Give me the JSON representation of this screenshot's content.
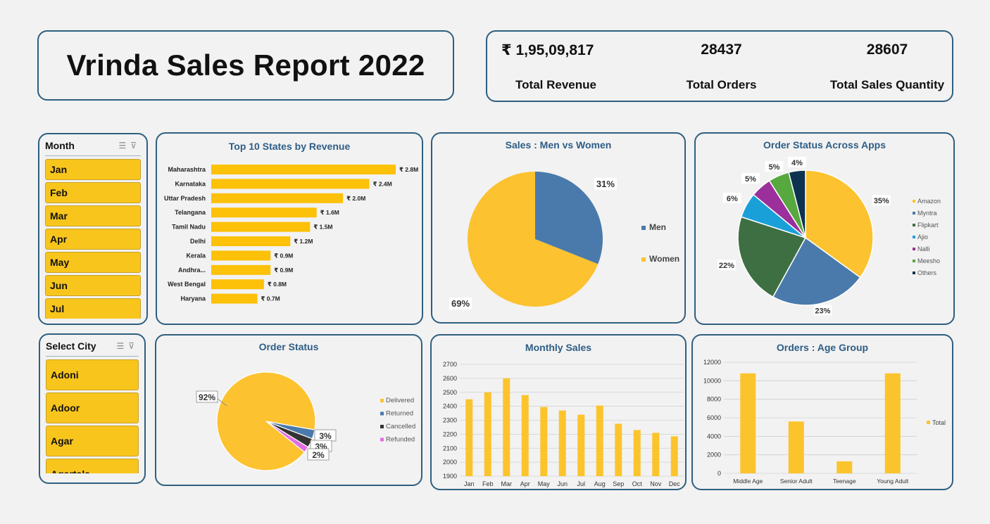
{
  "header": {
    "title": "Vrinda Sales Report 2022"
  },
  "kpis": [
    {
      "value": "₹ 1,95,09,817",
      "label": "Total Revenue"
    },
    {
      "value": "28437",
      "label": "Total Orders"
    },
    {
      "value": "28607",
      "label": "Total  Sales Quantity"
    }
  ],
  "month_slicer": {
    "title": "Month",
    "items": [
      "Jan",
      "Feb",
      "Mar",
      "Apr",
      "May",
      "Jun",
      "Jul"
    ]
  },
  "city_slicer": {
    "title": "Select City",
    "items": [
      "Adoni",
      "Adoor",
      "Agar",
      "Agartala"
    ]
  },
  "colors": {
    "yellow": "#fcc22f",
    "blue": "#4a7aab",
    "green": "#3e6f42",
    "cyan": "#1aa0d8",
    "purple": "#9b2f9b",
    "lime": "#56a83f",
    "navy": "#0d3350",
    "dark": "#333333",
    "pink": "#e26ee2",
    "accent": "#2e5d86"
  },
  "chart_data": [
    {
      "type": "bar",
      "title": "Top 10 States by Revenue",
      "categories": [
        "Maharashtra",
        "Karnataka",
        "Uttar Pradesh",
        "Telangana",
        "Tamil Nadu",
        "Delhi",
        "Kerala",
        "Andhra...",
        "West Bengal",
        "Haryana"
      ],
      "values": [
        2.8,
        2.4,
        2.0,
        1.6,
        1.5,
        1.2,
        0.9,
        0.9,
        0.8,
        0.7
      ],
      "labels": [
        "₹ 2.8M",
        "₹ 2.4M",
        "₹ 2.0M",
        "₹ 1.6M",
        "₹ 1.5M",
        "₹ 1.2M",
        "₹ 0.9M",
        "₹ 0.9M",
        "₹ 0.8M",
        "₹ 0.7M"
      ]
    },
    {
      "type": "pie",
      "title": "Sales : Men vs Women",
      "categories": [
        "Men",
        "Women"
      ],
      "values": [
        31,
        69
      ],
      "labels": [
        "31%",
        "69%"
      ]
    },
    {
      "type": "pie",
      "title": "Order Status Across Apps",
      "categories": [
        "Amazon",
        "Myntra",
        "Flipkart",
        "Ajio",
        "Nalli",
        "Meesho",
        "Others"
      ],
      "values": [
        35,
        23,
        22,
        6,
        5,
        5,
        4
      ],
      "labels": [
        "35%",
        "23%",
        "22%",
        "6%",
        "5%",
        "5%",
        "4%"
      ]
    },
    {
      "type": "pie",
      "title": "Order Status",
      "categories": [
        "Delivered",
        "Returned",
        "Cancelled",
        "Refunded"
      ],
      "values": [
        92,
        3,
        3,
        2
      ],
      "labels": [
        "92%",
        "3%",
        "3%",
        "2%"
      ]
    },
    {
      "type": "bar",
      "title": "Monthly Sales",
      "categories": [
        "Jan",
        "Feb",
        "Mar",
        "Apr",
        "May",
        "Jun",
        "Jul",
        "Aug",
        "Sep",
        "Oct",
        "Nov",
        "Dec"
      ],
      "values": [
        2450,
        2500,
        2600,
        2480,
        2395,
        2370,
        2340,
        2405,
        2275,
        2230,
        2210,
        2185
      ],
      "ylim": [
        1900,
        2700
      ],
      "yticks": [
        "2700",
        "2600",
        "2500",
        "2400",
        "2300",
        "2200",
        "2100",
        "2000",
        "1900"
      ],
      "grid": true
    },
    {
      "type": "bar",
      "title": "Orders : Age Group",
      "categories": [
        "Middle Age",
        "Senior Adult",
        "Teenage",
        "Young Adult"
      ],
      "values": [
        10800,
        5600,
        1300,
        10800
      ],
      "ylim": [
        0,
        12000
      ],
      "yticks": [
        "12000",
        "10000",
        "8000",
        "6000",
        "4000",
        "2000",
        "0"
      ],
      "series_name": "Total",
      "grid": true
    }
  ]
}
